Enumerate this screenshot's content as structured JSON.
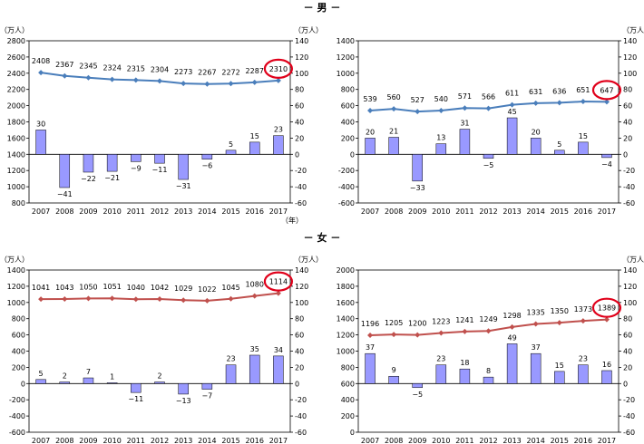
{
  "sections": [
    {
      "label": "－ 男 －"
    },
    {
      "label": "－ 女 －"
    }
  ],
  "chart_data": [
    {
      "type": "bar+line",
      "panel": "male-total",
      "left_axis": {
        "unit": "（万人）",
        "range": [
          800,
          2800
        ],
        "ticks": [
          800,
          1000,
          1200,
          1400,
          1600,
          1800,
          2000,
          2200,
          2400,
          2600,
          2800
        ]
      },
      "right_axis": {
        "unit": "（万人）",
        "range": [
          -60,
          140
        ],
        "ticks": [
          -60,
          -40,
          -20,
          0,
          20,
          40,
          60,
          80,
          100,
          120,
          140
        ]
      },
      "categories": [
        "2007",
        "2008",
        "2009",
        "2010",
        "2011",
        "2012",
        "2013",
        "2014",
        "2015",
        "2016",
        "2017"
      ],
      "x_unit": "（年）",
      "line_series": {
        "color": "#4a7ebb",
        "values": [
          2408,
          2367,
          2345,
          2324,
          2315,
          2304,
          2273,
          2267,
          2272,
          2287,
          2310
        ]
      },
      "bar_series": {
        "color": "#9999ff",
        "values": [
          30,
          -41,
          -22,
          -21,
          -9,
          -11,
          -31,
          -6,
          5,
          15,
          23
        ]
      },
      "highlight_index": 10
    },
    {
      "type": "bar+line",
      "panel": "male-part",
      "left_axis": {
        "unit": "",
        "range": [
          -600,
          1400
        ],
        "ticks": [
          -600,
          -400,
          -200,
          0,
          200,
          400,
          600,
          800,
          1000,
          1200,
          1400
        ]
      },
      "right_axis": {
        "unit": "（万人）",
        "range": [
          -60,
          140
        ],
        "ticks": [
          -60,
          -40,
          -20,
          0,
          20,
          40,
          60,
          80,
          100,
          120,
          140
        ]
      },
      "categories": [
        "2007",
        "2008",
        "2009",
        "2010",
        "2011",
        "2012",
        "2013",
        "2014",
        "2015",
        "2016",
        "2017"
      ],
      "x_unit": "",
      "line_series": {
        "color": "#4a7ebb",
        "values": [
          539,
          560,
          527,
          540,
          571,
          566,
          611,
          631,
          636,
          651,
          647
        ]
      },
      "bar_series": {
        "color": "#9999ff",
        "values": [
          20,
          21,
          -33,
          13,
          31,
          -5,
          45,
          20,
          5,
          15,
          -4
        ]
      },
      "highlight_index": 10
    },
    {
      "type": "bar+line",
      "panel": "female-total",
      "left_axis": {
        "unit": "（万人）",
        "range": [
          -600,
          1400
        ],
        "ticks": [
          -600,
          -400,
          -200,
          0,
          200,
          400,
          600,
          800,
          1000,
          1200,
          1400
        ]
      },
      "right_axis": {
        "unit": "（万人）",
        "range": [
          -60,
          140
        ],
        "ticks": [
          -60,
          -40,
          -20,
          0,
          20,
          40,
          60,
          80,
          100,
          120,
          140
        ]
      },
      "categories": [
        "2007",
        "2008",
        "2009",
        "2010",
        "2011",
        "2012",
        "2013",
        "2014",
        "2015",
        "2016",
        "2017"
      ],
      "x_unit": "",
      "line_series": {
        "color": "#c0504d",
        "values": [
          1041,
          1043,
          1050,
          1051,
          1040,
          1042,
          1029,
          1022,
          1045,
          1080,
          1114
        ]
      },
      "bar_series": {
        "color": "#9999ff",
        "values": [
          5,
          2,
          7,
          1,
          -11,
          2,
          -13,
          -7,
          23,
          35,
          34
        ]
      },
      "highlight_index": 10
    },
    {
      "type": "bar+line",
      "panel": "female-part",
      "left_axis": {
        "unit": "",
        "range": [
          0,
          2000
        ],
        "ticks": [
          0,
          200,
          400,
          600,
          800,
          1000,
          1200,
          1400,
          1600,
          1800,
          2000
        ]
      },
      "right_axis": {
        "unit": "（万人）",
        "range": [
          -60,
          140
        ],
        "ticks": [
          -60,
          -40,
          -20,
          0,
          20,
          40,
          60,
          80,
          100,
          120,
          140
        ]
      },
      "categories": [
        "2007",
        "2008",
        "2009",
        "2010",
        "2011",
        "2012",
        "2013",
        "2014",
        "2015",
        "2016",
        "2017"
      ],
      "x_unit": "",
      "line_series": {
        "color": "#c0504d",
        "values": [
          1196,
          1205,
          1200,
          1223,
          1241,
          1249,
          1298,
          1335,
          1350,
          1373,
          1389
        ]
      },
      "bar_series": {
        "color": "#9999ff",
        "values": [
          37,
          9,
          -5,
          23,
          18,
          8,
          49,
          37,
          15,
          23,
          16
        ]
      },
      "highlight_index": 10
    }
  ]
}
